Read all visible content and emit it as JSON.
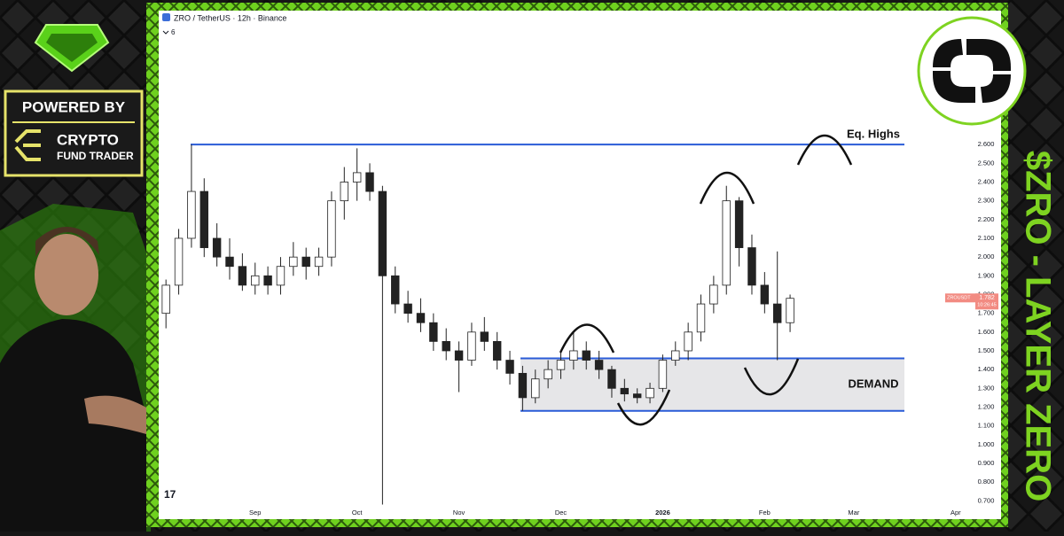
{
  "chart_data": {
    "type": "candlestick",
    "title": "ZRO / TetherUS · 12h · Binance",
    "legend_toggle": "6",
    "categories": [
      null,
      null,
      null,
      null,
      null,
      null,
      null,
      "Sep",
      null,
      null,
      null,
      null,
      null,
      null,
      null,
      "Oct",
      null,
      null,
      null,
      null,
      null,
      null,
      null,
      "Nov",
      null,
      null,
      null,
      null,
      null,
      null,
      null,
      "Dec",
      null,
      null,
      null,
      null,
      null,
      null,
      null,
      "2026",
      null,
      null,
      null,
      null,
      null,
      null,
      null,
      "Feb",
      null,
      null,
      null,
      null,
      null,
      null,
      "Mar",
      null,
      null,
      null,
      null,
      null,
      null,
      null,
      "Apr"
    ],
    "open": [
      1.7,
      1.85,
      2.1,
      2.35,
      2.1,
      2.0,
      1.95,
      1.85,
      1.9,
      1.85,
      1.95,
      2.0,
      1.95,
      2.0,
      2.3,
      2.4,
      2.45,
      2.35,
      1.9,
      1.75,
      1.7,
      1.65,
      1.55,
      1.5,
      1.45,
      1.6,
      1.55,
      1.45,
      1.38,
      1.25,
      1.35,
      1.4,
      1.45,
      1.5,
      1.45,
      1.4,
      1.3,
      1.27,
      1.25,
      1.3,
      1.45,
      1.5,
      1.6,
      1.75,
      1.85,
      2.3,
      2.05,
      1.85,
      1.75,
      1.65,
      null,
      null,
      null,
      null,
      null,
      null,
      null,
      null,
      null,
      null,
      null,
      null,
      null
    ],
    "high": [
      1.88,
      2.15,
      2.6,
      2.42,
      2.18,
      2.1,
      2.02,
      1.97,
      1.95,
      2.0,
      2.08,
      2.05,
      2.05,
      2.35,
      2.48,
      2.58,
      2.5,
      2.38,
      1.95,
      1.82,
      1.78,
      1.7,
      1.62,
      1.55,
      1.65,
      1.68,
      1.6,
      1.5,
      1.42,
      1.4,
      1.45,
      1.5,
      1.6,
      1.55,
      1.5,
      1.42,
      1.35,
      1.3,
      1.33,
      1.48,
      1.55,
      1.65,
      1.8,
      1.9,
      2.38,
      2.32,
      2.12,
      1.92,
      2.03,
      1.8,
      null,
      null,
      null,
      null,
      null,
      null,
      null,
      null,
      null,
      null,
      null,
      null,
      null
    ],
    "low": [
      1.62,
      1.8,
      2.05,
      2.0,
      1.95,
      1.88,
      1.82,
      1.8,
      1.8,
      1.8,
      1.9,
      1.88,
      1.9,
      1.95,
      2.2,
      2.3,
      2.3,
      0.68,
      1.7,
      1.65,
      1.6,
      1.5,
      1.45,
      1.28,
      1.42,
      1.5,
      1.4,
      1.32,
      1.18,
      1.22,
      1.3,
      1.35,
      1.4,
      1.4,
      1.35,
      1.25,
      1.23,
      1.22,
      1.22,
      1.28,
      1.42,
      1.45,
      1.55,
      1.7,
      1.8,
      1.95,
      1.8,
      1.7,
      1.45,
      1.6,
      null,
      null,
      null,
      null,
      null,
      null,
      null,
      null,
      null,
      null,
      null,
      null,
      null
    ],
    "close": [
      1.85,
      2.1,
      2.35,
      2.05,
      2.0,
      1.95,
      1.85,
      1.9,
      1.85,
      1.95,
      2.0,
      1.95,
      2.0,
      2.3,
      2.4,
      2.45,
      2.35,
      1.9,
      1.75,
      1.7,
      1.65,
      1.55,
      1.5,
      1.45,
      1.6,
      1.55,
      1.45,
      1.38,
      1.25,
      1.35,
      1.4,
      1.45,
      1.5,
      1.45,
      1.4,
      1.3,
      1.27,
      1.25,
      1.3,
      1.45,
      1.5,
      1.6,
      1.75,
      1.85,
      2.3,
      2.05,
      1.85,
      1.75,
      1.65,
      1.78,
      null,
      null,
      null,
      null,
      null,
      null,
      null,
      null,
      null,
      null,
      null,
      null,
      null
    ],
    "up_color": "#ffffff",
    "down_color": "#222222",
    "ylim": [
      0.64,
      3.3
    ],
    "yticks": [
      {
        "value": 0.7,
        "label": "0.700"
      },
      {
        "value": 0.8,
        "label": "0.800"
      },
      {
        "value": 0.9,
        "label": "0.900"
      },
      {
        "value": 1.0,
        "label": "1.000"
      },
      {
        "value": 1.1,
        "label": "1.100"
      },
      {
        "value": 1.2,
        "label": "1.200"
      },
      {
        "value": 1.3,
        "label": "1.300"
      },
      {
        "value": 1.4,
        "label": "1.400"
      },
      {
        "value": 1.5,
        "label": "1.500"
      },
      {
        "value": 1.6,
        "label": "1.600"
      },
      {
        "value": 1.7,
        "label": "1.700"
      },
      {
        "value": 1.8,
        "label": "1.800"
      },
      {
        "value": 1.9,
        "label": "1.900"
      },
      {
        "value": 2.0,
        "label": "2.000"
      },
      {
        "value": 2.1,
        "label": "2.100"
      },
      {
        "value": 2.2,
        "label": "2.200"
      },
      {
        "value": 2.3,
        "label": "2.300"
      },
      {
        "value": 2.4,
        "label": "2.400"
      },
      {
        "value": 2.5,
        "label": "2.500"
      },
      {
        "value": 2.6,
        "label": "2.600"
      }
    ],
    "grid": false,
    "last_price": {
      "symbol": "ZROUSDT",
      "value": 1.782,
      "countdown": "10:26:45",
      "color": "#f28b82"
    },
    "levels": [
      {
        "label": "Eq. Highs",
        "value": 2.6,
        "color": "#2a5bd7"
      }
    ],
    "zones": [
      {
        "label": "DEMAND",
        "low": 1.18,
        "high": 1.46,
        "color": "#2a5bd7"
      }
    ]
  },
  "branding": {
    "powered_by": "POWERED BY",
    "company_line1": "CRYPTO",
    "company_line2": "FUND TRADER",
    "headline": "$ZRO - LAYER ZERO"
  }
}
